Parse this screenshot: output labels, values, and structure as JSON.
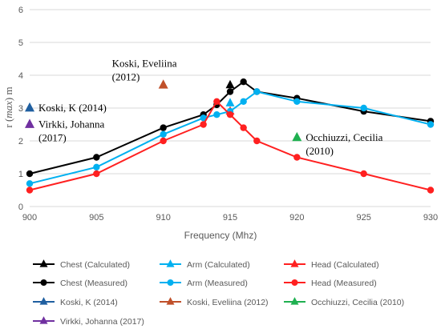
{
  "chart_data": {
    "type": "line",
    "xlabel": "Frequency (Mhz)",
    "ylabel_parts": [
      "r (",
      "max",
      ") m"
    ],
    "xlim": [
      900,
      930
    ],
    "ylim": [
      0,
      6
    ],
    "xticks": [
      900,
      905,
      910,
      915,
      920,
      925,
      930
    ],
    "yticks": [
      0,
      1,
      2,
      3,
      4,
      5,
      6
    ],
    "grid": "horizontal",
    "legend_position": "bottom",
    "series": [
      {
        "name": "Chest (Calculated)",
        "kind": "triangle-line",
        "color": "#000000",
        "points": [
          [
            915,
            3.7
          ]
        ]
      },
      {
        "name": "Arm (Calculated)",
        "kind": "triangle-line",
        "color": "#00b0f0",
        "points": [
          [
            915,
            3.15
          ]
        ]
      },
      {
        "name": "Head (Calculated)",
        "kind": "triangle-line",
        "color": "#ff2020",
        "points": [
          [
            915,
            2.9
          ]
        ]
      },
      {
        "name": "Chest (Measured)",
        "kind": "circle-line",
        "color": "#000000",
        "points": [
          [
            900,
            1.0
          ],
          [
            905,
            1.5
          ],
          [
            910,
            2.4
          ],
          [
            913,
            2.8
          ],
          [
            914,
            3.1
          ],
          [
            915,
            3.5
          ],
          [
            916,
            3.8
          ],
          [
            917,
            3.5
          ],
          [
            920,
            3.3
          ],
          [
            925,
            2.9
          ],
          [
            930,
            2.6
          ]
        ]
      },
      {
        "name": "Arm (Measured)",
        "kind": "circle-line",
        "color": "#00b0f0",
        "points": [
          [
            900,
            0.7
          ],
          [
            905,
            1.2
          ],
          [
            910,
            2.2
          ],
          [
            913,
            2.7
          ],
          [
            914,
            2.8
          ],
          [
            915,
            2.9
          ],
          [
            916,
            3.2
          ],
          [
            917,
            3.5
          ],
          [
            920,
            3.2
          ],
          [
            925,
            3.0
          ],
          [
            930,
            2.5
          ]
        ]
      },
      {
        "name": "Head (Measured)",
        "kind": "circle-line",
        "color": "#ff2020",
        "points": [
          [
            900,
            0.5
          ],
          [
            905,
            1.0
          ],
          [
            910,
            2.0
          ],
          [
            913,
            2.5
          ],
          [
            914,
            3.2
          ],
          [
            915,
            2.8
          ],
          [
            916,
            2.4
          ],
          [
            917,
            2.0
          ],
          [
            920,
            1.5
          ],
          [
            925,
            1.0
          ],
          [
            930,
            0.5
          ]
        ]
      },
      {
        "name": "Koski, K (2014)",
        "kind": "triangle-marker",
        "color": "#1f5fa0",
        "points": [
          [
            900,
            3.0
          ]
        ]
      },
      {
        "name": "Koski, Eveliina (2012)",
        "kind": "triangle-marker",
        "color": "#c0502a",
        "points": [
          [
            910,
            3.7
          ]
        ]
      },
      {
        "name": "Occhiuzzi, Cecilia (2010)",
        "kind": "triangle-marker",
        "color": "#1fb050",
        "points": [
          [
            920,
            2.1
          ]
        ]
      },
      {
        "name": "Virkki, Johanna (2017)",
        "kind": "triangle-marker",
        "color": "#7030a0",
        "points": [
          [
            900,
            2.5
          ]
        ]
      }
    ],
    "annotations": [
      {
        "lines": [
          "Koski, Eveliina",
          "(2012)"
        ],
        "x": 910,
        "y": 3.7,
        "anchor": "above-left"
      },
      {
        "lines": [
          "Koski, K (2014)"
        ],
        "x": 900,
        "y": 3.0,
        "anchor": "right"
      },
      {
        "lines": [
          "Virkki, Johanna",
          "(2017)"
        ],
        "x": 900,
        "y": 2.5,
        "anchor": "right-below"
      },
      {
        "lines": [
          "Occhiuzzi, Cecilia",
          "(2010)"
        ],
        "x": 920,
        "y": 2.1,
        "anchor": "right-below"
      }
    ]
  }
}
